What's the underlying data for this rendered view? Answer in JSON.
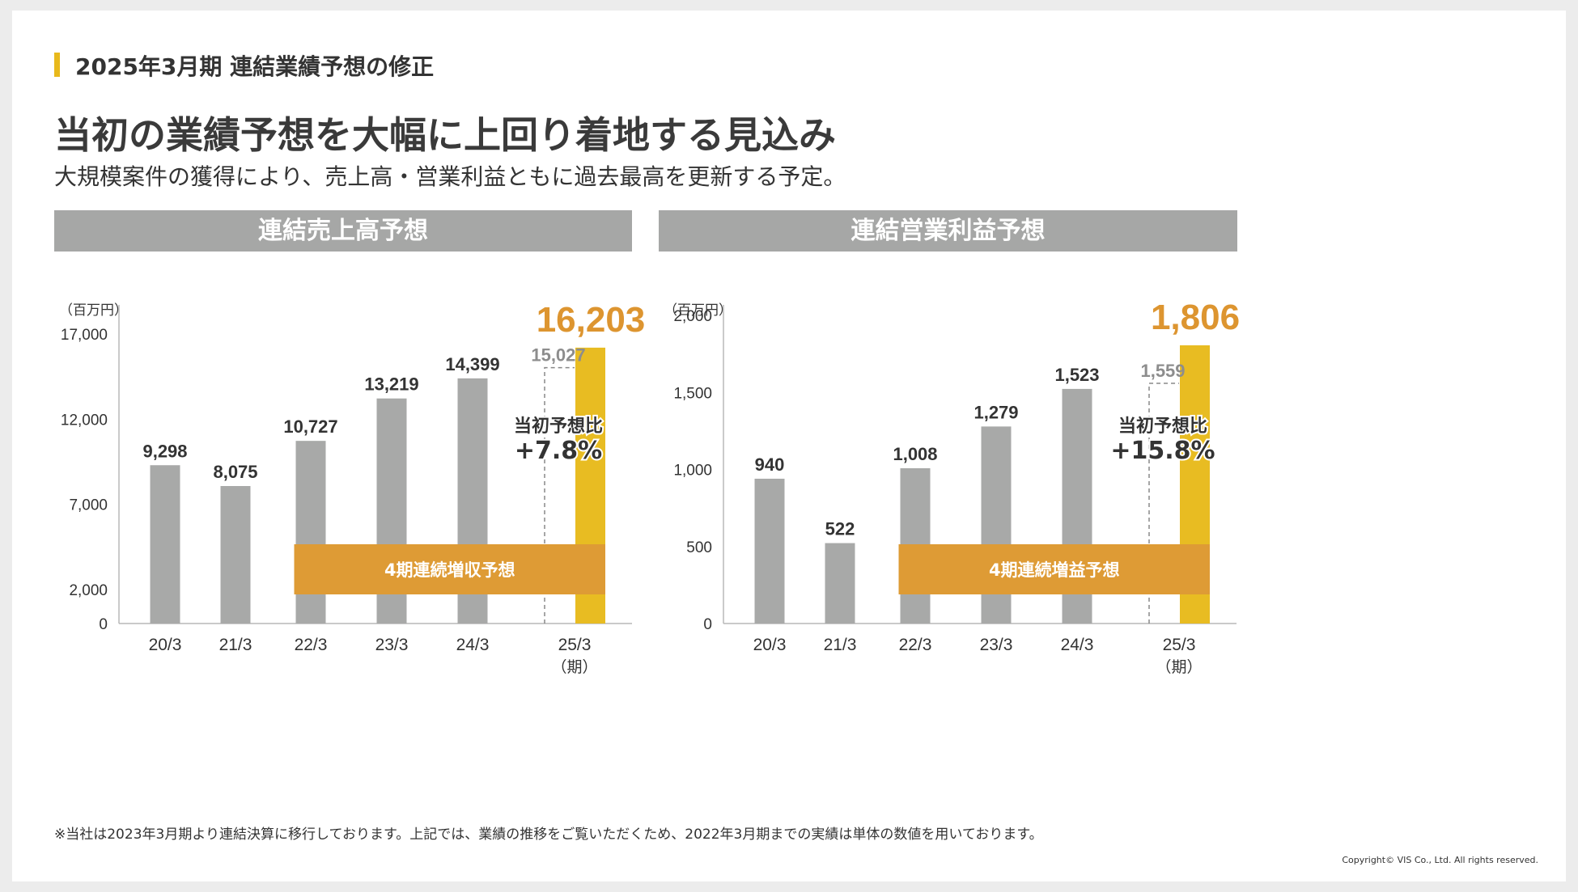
{
  "page": {
    "section_title": "2025年3月期 連結業績予想の修正",
    "headline": "当初の業績予想を大幅に上回り着地する見込み",
    "subheadline": "大規模案件の獲得により、売上高・営業利益ともに過去最高を更新する予定。",
    "footnote": "※当社は2023年3月期より連結決算に移行しております。上記では、業績の推移をご覧いただくため、2022年3月期までの実績は単体の数値を用いております。",
    "copyright": "Copyright© VIS Co., Ltd. All rights reserved."
  },
  "colors": {
    "accent": "#e8b91c",
    "bar_gray": "#a8a9a8",
    "forecast_yellow": "#e8bc22",
    "band_orange": "#de9b35",
    "highlight_orange": "#dd9530",
    "panel_gray": "#a6a7a6",
    "initial_forecast_label": "#8d8d8d"
  },
  "chart_data": [
    {
      "type": "bar",
      "title": "連結売上高予想",
      "unit_label": "（百万円）",
      "categories": [
        "20/3",
        "21/3",
        "22/3",
        "23/3",
        "24/3",
        "25/3"
      ],
      "period_suffix": "（期）",
      "values": [
        9298,
        8075,
        10727,
        13219,
        14399,
        16203
      ],
      "value_labels": [
        "9,298",
        "8,075",
        "10,727",
        "13,219",
        "14,399",
        "16,203"
      ],
      "initial_forecast": {
        "category": "25/3",
        "value": 15027,
        "label": "15,027"
      },
      "comparison": {
        "label": "当初予想比",
        "value": "+7.8%"
      },
      "band": {
        "label": "4期連続増収予想",
        "from_category": "22/3",
        "to_category": "25/3"
      },
      "yticks": [
        0,
        2000,
        7000,
        12000,
        17000
      ],
      "ytick_labels": [
        "0",
        "2,000",
        "7,000",
        "12,000",
        "17,000"
      ],
      "ylim": [
        0,
        19000
      ]
    },
    {
      "type": "bar",
      "title": "連結営業利益予想",
      "unit_label": "（百万円）",
      "categories": [
        "20/3",
        "21/3",
        "22/3",
        "23/3",
        "24/3",
        "25/3"
      ],
      "period_suffix": "（期）",
      "values": [
        940,
        522,
        1008,
        1279,
        1523,
        1806
      ],
      "value_labels": [
        "940",
        "522",
        "1,008",
        "1,279",
        "1,523",
        "1,806"
      ],
      "initial_forecast": {
        "category": "25/3",
        "value": 1559,
        "label": "1,559"
      },
      "comparison": {
        "label": "当初予想比",
        "value": "+15.8%"
      },
      "band": {
        "label": "4期連続増益予想",
        "from_category": "22/3",
        "to_category": "25/3"
      },
      "yticks": [
        0,
        500,
        1000,
        1500,
        2000
      ],
      "ytick_labels": [
        "0",
        "500",
        "1,000",
        "1,500",
        "2,000"
      ],
      "ylim": [
        0,
        2100
      ]
    }
  ]
}
